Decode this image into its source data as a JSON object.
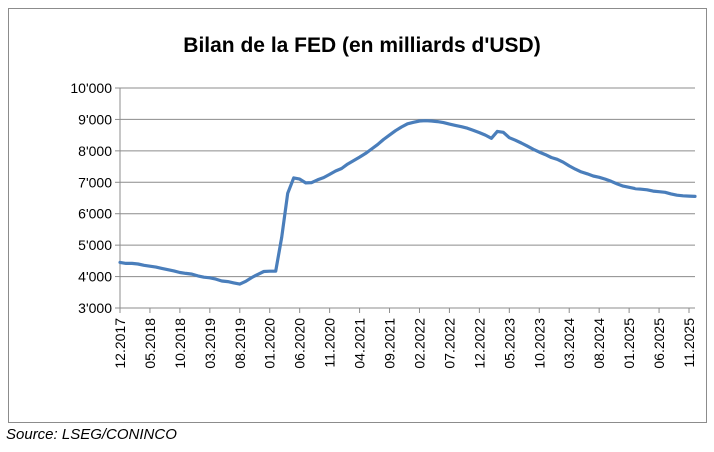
{
  "source": "Source: LSEG/CONINCO",
  "chart_data": {
    "type": "line",
    "title": "Bilan de la FED (en milliards d'USD)",
    "xlabel": "",
    "ylabel": "",
    "ylim": [
      3000,
      10000
    ],
    "yticks": [
      "3'000",
      "4'000",
      "5'000",
      "6'000",
      "7'000",
      "8'000",
      "9'000",
      "10'000"
    ],
    "xticks": [
      "12.2017",
      "05.2018",
      "10.2018",
      "03.2019",
      "08.2019",
      "01.2020",
      "06.2020",
      "11.2020",
      "04.2021",
      "09.2021",
      "02.2022",
      "07.2022",
      "12.2022",
      "05.2023",
      "10.2023",
      "03.2024",
      "08.2024",
      "01.2025",
      "06.2025",
      "11.2025"
    ],
    "grid": true,
    "legend": "none",
    "line_color": "#4a7ebb",
    "series": [
      {
        "x": [
          "12.2017",
          "01.2018",
          "02.2018",
          "03.2018",
          "04.2018",
          "05.2018",
          "06.2018",
          "07.2018",
          "08.2018",
          "09.2018",
          "10.2018",
          "11.2018",
          "12.2018",
          "01.2019",
          "02.2019",
          "03.2019",
          "04.2019",
          "05.2019",
          "06.2019",
          "07.2019",
          "08.2019",
          "09.2019",
          "10.2019",
          "11.2019",
          "12.2019",
          "01.2020",
          "02.2020",
          "03.2020",
          "04.2020",
          "05.2020",
          "06.2020",
          "07.2020",
          "08.2020",
          "09.2020",
          "10.2020",
          "11.2020",
          "12.2020",
          "01.2021",
          "02.2021",
          "03.2021",
          "04.2021",
          "05.2021",
          "06.2021",
          "07.2021",
          "08.2021",
          "09.2021",
          "10.2021",
          "11.2021",
          "12.2021",
          "01.2022",
          "02.2022",
          "03.2022",
          "04.2022",
          "05.2022",
          "06.2022",
          "07.2022",
          "08.2022",
          "09.2022",
          "10.2022",
          "11.2022",
          "12.2022",
          "01.2023",
          "02.2023",
          "03.2023",
          "04.2023",
          "05.2023",
          "06.2023",
          "07.2023",
          "08.2023",
          "09.2023",
          "10.2023",
          "11.2023",
          "12.2023",
          "01.2024",
          "02.2024",
          "03.2024",
          "04.2024",
          "05.2024",
          "06.2024",
          "07.2024",
          "08.2024",
          "09.2024",
          "10.2024",
          "11.2024",
          "12.2024",
          "01.2025",
          "02.2025",
          "03.2025",
          "04.2025",
          "05.2025",
          "06.2025",
          "07.2025",
          "08.2025",
          "09.2025",
          "10.2025",
          "11.2025",
          "12.2025"
        ],
        "values": [
          4450,
          4420,
          4420,
          4400,
          4360,
          4330,
          4300,
          4260,
          4220,
          4180,
          4130,
          4100,
          4080,
          4020,
          3980,
          3960,
          3920,
          3860,
          3840,
          3800,
          3760,
          3850,
          3970,
          4070,
          4160,
          4170,
          4170,
          5250,
          6650,
          7140,
          7100,
          6980,
          6990,
          7080,
          7150,
          7250,
          7360,
          7440,
          7580,
          7690,
          7800,
          7920,
          8060,
          8200,
          8360,
          8500,
          8640,
          8760,
          8860,
          8910,
          8950,
          8960,
          8950,
          8930,
          8900,
          8850,
          8810,
          8770,
          8720,
          8650,
          8580,
          8500,
          8400,
          8620,
          8590,
          8420,
          8340,
          8250,
          8150,
          8050,
          7960,
          7880,
          7790,
          7730,
          7640,
          7520,
          7420,
          7330,
          7270,
          7200,
          7160,
          7100,
          7030,
          6950,
          6880,
          6840,
          6800,
          6780,
          6760,
          6720,
          6700,
          6680,
          6630,
          6590,
          6570,
          6560,
          6550
        ]
      }
    ]
  }
}
